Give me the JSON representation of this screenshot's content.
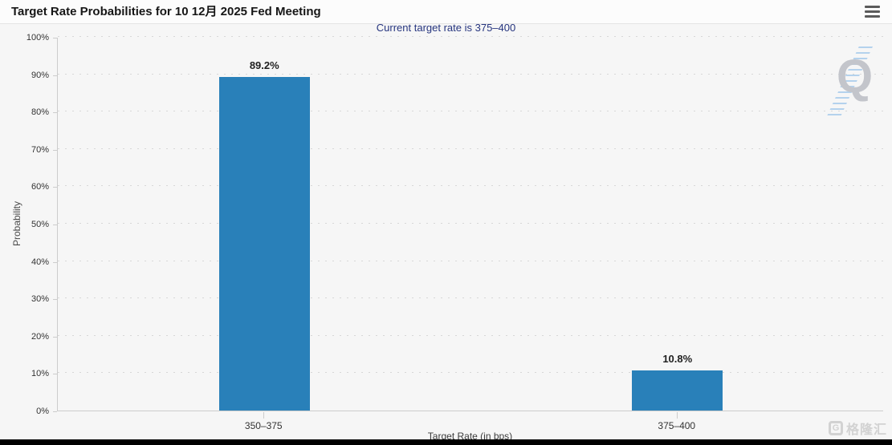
{
  "header": {
    "title": "Target Rate Probabilities for 10 12月 2025 Fed Meeting"
  },
  "subtitle": "Current target rate is 375–400",
  "chart_data": {
    "type": "bar",
    "title": "Target Rate Probabilities for 10 12月 2025 Fed Meeting",
    "subtitle": "Current target rate is 375–400",
    "categories": [
      "350–375",
      "375–400"
    ],
    "values": [
      89.2,
      10.8
    ],
    "value_labels": [
      "89.2%",
      "10.8%"
    ],
    "xlabel": "Target Rate (in bps)",
    "ylabel": "Probability",
    "ylim": [
      0,
      100
    ],
    "ytick_step": 10,
    "ytick_suffix": "%",
    "grid": "horizontal dotted",
    "legend": "none",
    "bar_color": "#2980b9"
  },
  "icons": {
    "menu_icon": "hamburger-icon"
  },
  "watermarks": {
    "plot_letter": "Q",
    "brand_logo_letter": "G",
    "brand_text": "格隆汇"
  },
  "colors": {
    "bar": "#2980b9",
    "subtitle_text": "#26357f",
    "axis_line": "#cccccc",
    "gridline": "#d7d7d7",
    "tick_text": "#333333"
  }
}
